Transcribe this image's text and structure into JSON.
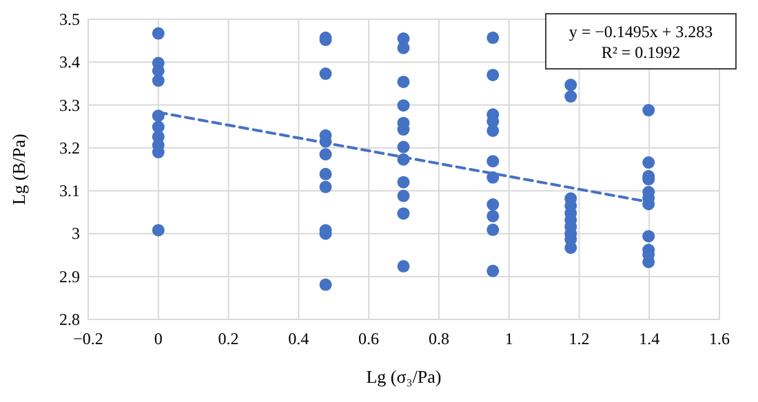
{
  "chart_data": {
    "type": "scatter",
    "xlabel": "Lg (σ₃/Pa)",
    "ylabel": "Lg (B/Pa)",
    "xlim": [
      -0.2,
      1.6
    ],
    "ylim": [
      2.8,
      3.5
    ],
    "xticks": [
      -0.2,
      0,
      0.2,
      0.4,
      0.6,
      0.8,
      1,
      1.2,
      1.4,
      1.6
    ],
    "yticks": [
      2.8,
      2.9,
      3,
      3.1,
      3.2,
      3.3,
      3.4,
      3.5
    ],
    "grid": true,
    "annotations": [
      "y = −0.1495x + 3.283",
      "R² = 0.1992"
    ],
    "series": [
      {
        "color": "#4472c4",
        "marker": "circle",
        "x": [
          0,
          0,
          0,
          0,
          0,
          0,
          0,
          0,
          0,
          0,
          0.477,
          0.477,
          0.477,
          0.477,
          0.477,
          0.477,
          0.477,
          0.477,
          0.477,
          0.477,
          0.477,
          0.699,
          0.699,
          0.699,
          0.699,
          0.699,
          0.699,
          0.699,
          0.699,
          0.699,
          0.699,
          0.699,
          0.699,
          0.954,
          0.954,
          0.954,
          0.954,
          0.954,
          0.954,
          0.954,
          0.954,
          0.954,
          0.954,
          0.954,
          1.176,
          1.176,
          1.176,
          1.176,
          1.176,
          1.176,
          1.176,
          1.176,
          1.176,
          1.176,
          1.398,
          1.398,
          1.398,
          1.398,
          1.398,
          1.398,
          1.398,
          1.398,
          1.398,
          1.398,
          1.398
        ],
        "values": [
          3.467,
          3.398,
          3.38,
          3.357,
          3.275,
          3.249,
          3.226,
          3.206,
          3.19,
          3.008,
          3.457,
          3.452,
          3.373,
          3.229,
          3.215,
          3.185,
          3.139,
          3.109,
          3.008,
          3.0,
          2.881,
          3.455,
          3.433,
          3.354,
          3.299,
          3.258,
          3.243,
          3.202,
          3.173,
          3.12,
          3.088,
          3.047,
          2.924,
          3.457,
          3.37,
          3.278,
          3.262,
          3.24,
          3.169,
          3.131,
          3.068,
          3.041,
          3.009,
          2.913,
          3.347,
          3.32,
          3.082,
          3.065,
          3.048,
          3.032,
          3.016,
          3.0,
          2.987,
          2.967,
          3.288,
          3.166,
          3.134,
          3.127,
          3.097,
          3.083,
          3.069,
          2.994,
          2.962,
          2.951,
          2.934
        ]
      },
      {
        "type": "line",
        "color": "#4472c4",
        "line_style": "dashed",
        "marker": "none",
        "x": [
          0,
          1.398
        ],
        "values": [
          3.283,
          3.074
        ]
      }
    ]
  }
}
